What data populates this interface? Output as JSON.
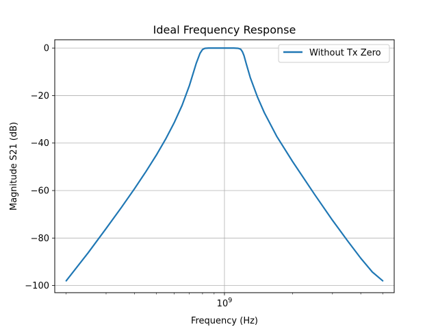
{
  "chart_data": {
    "type": "line",
    "title": "Ideal Frequency Response",
    "xlabel": "Frequency (Hz)",
    "ylabel": "Magnitude S21 (dB)",
    "xscale": "log",
    "xlim": [
      178000000.0,
      5620000000.0
    ],
    "ylim": [
      -103,
      3.5
    ],
    "grid": true,
    "legend_position": "top-right",
    "x_ticks": [
      {
        "value": 1000000000.0,
        "base": "10",
        "exp": "9"
      }
    ],
    "y_ticks": [
      0,
      -20,
      -40,
      -60,
      -80,
      -100
    ],
    "y_tick_labels": [
      "0",
      "−20",
      "−40",
      "−60",
      "−80",
      "−100"
    ],
    "series": [
      {
        "name": "Without Tx Zero",
        "color": "#1f77b4",
        "x": [
          200000000.0,
          250000000.0,
          300000000.0,
          350000000.0,
          400000000.0,
          450000000.0,
          500000000.0,
          550000000.0,
          600000000.0,
          650000000.0,
          700000000.0,
          750000000.0,
          780000000.0,
          800000000.0,
          820000000.0,
          850000000.0,
          900000000.0,
          1000000000.0,
          1100000000.0,
          1150000000.0,
          1180000000.0,
          1200000000.0,
          1220000000.0,
          1250000000.0,
          1300000000.0,
          1400000000.0,
          1500000000.0,
          1700000000.0,
          2000000000.0,
          2500000000.0,
          3000000000.0,
          3500000000.0,
          4000000000.0,
          4500000000.0,
          5000000000.0
        ],
        "y": [
          -98,
          -86.2,
          -76,
          -67.2,
          -59.3,
          -52,
          -45.1,
          -38.3,
          -31.4,
          -24.1,
          -15.8,
          -6.5,
          -2.2,
          -0.6,
          -0.1,
          0,
          0,
          0,
          0,
          -0.1,
          -0.5,
          -1.5,
          -3.2,
          -6.8,
          -12.4,
          -20.7,
          -27.2,
          -37.1,
          -47.8,
          -61.6,
          -72.5,
          -81.2,
          -88.5,
          -94.3,
          -98
        ]
      }
    ]
  }
}
